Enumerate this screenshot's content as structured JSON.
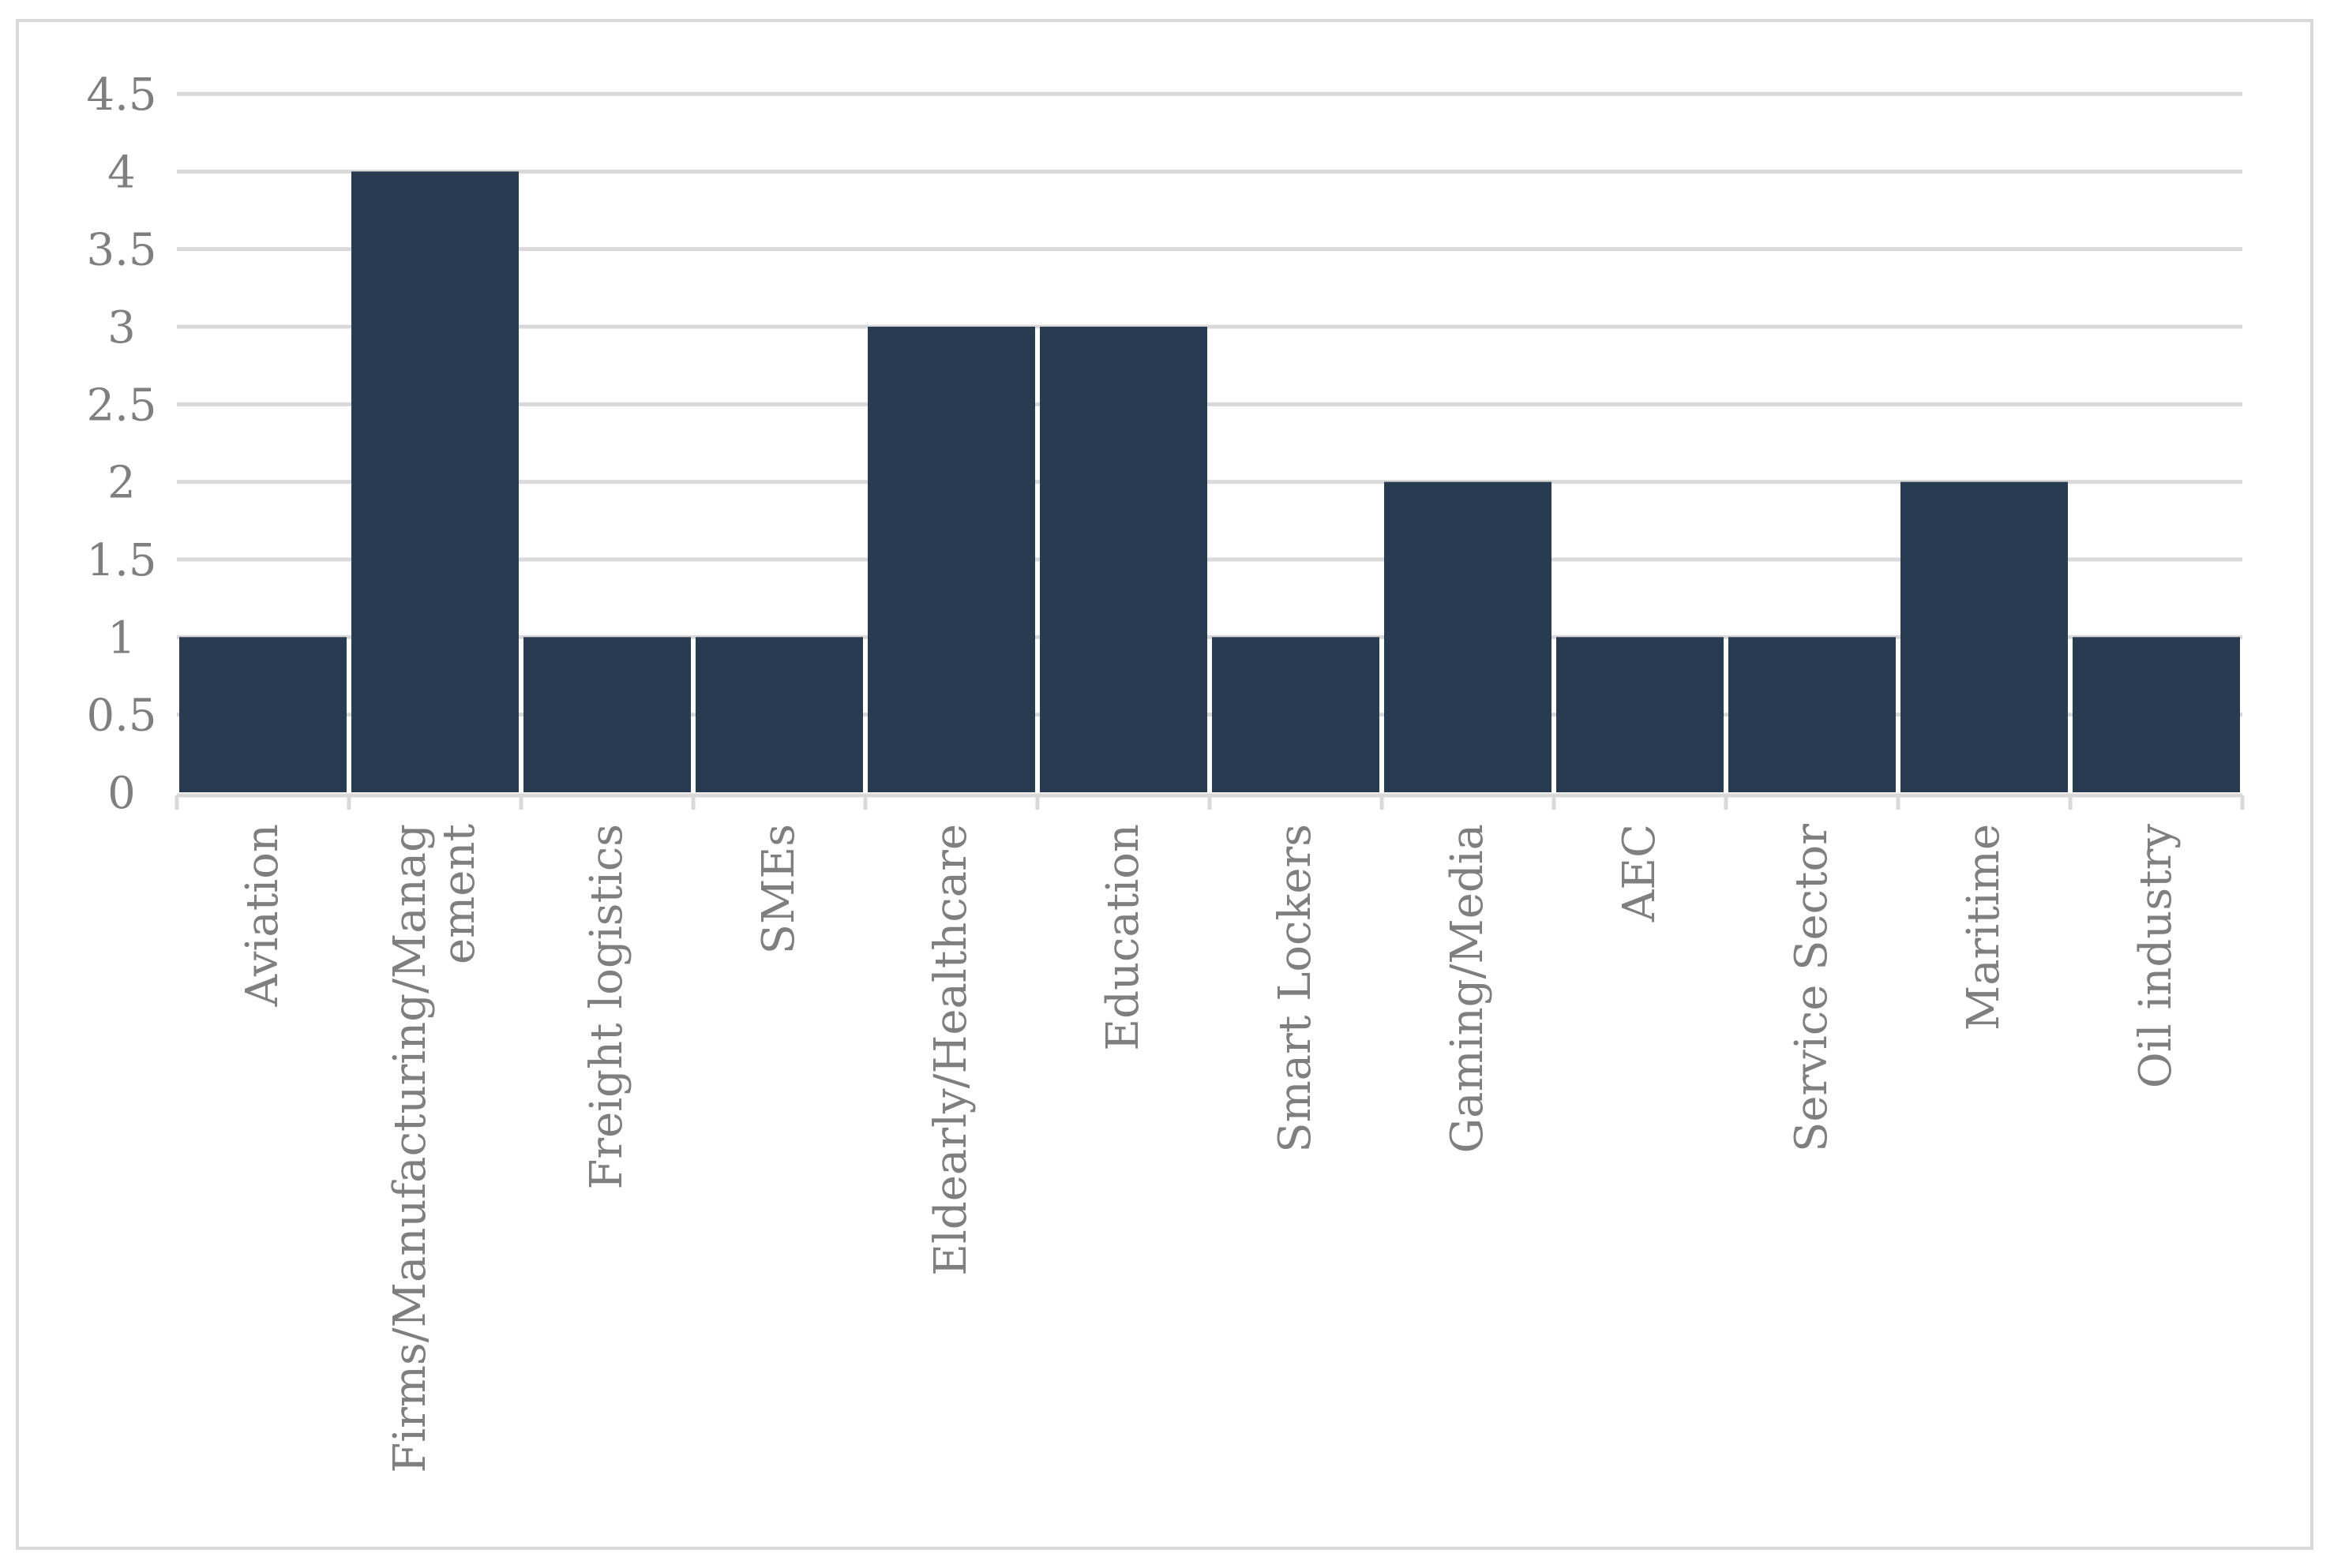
{
  "chart_data": {
    "type": "bar",
    "title": "",
    "xlabel": "",
    "ylabel": "",
    "categories": [
      "Aviation",
      "Firms/Manufacturing/Management",
      "Freight logistics",
      "SMEs",
      "Eldearly/Healthcare",
      "Education",
      "Smart Lockers",
      "Gaming/Media",
      "AEC",
      "Service Sector",
      "Maritime",
      "Oil industry"
    ],
    "category_label_lines": [
      [
        "Aviation"
      ],
      [
        "Firms/Manufacturing/Manag",
        "ement"
      ],
      [
        "Freight logistics"
      ],
      [
        "SMEs"
      ],
      [
        "Eldearly/Healthcare"
      ],
      [
        "Education"
      ],
      [
        "Smart Lockers"
      ],
      [
        "Gaming/Media"
      ],
      [
        "AEC"
      ],
      [
        "Service Sector"
      ],
      [
        "Maritime"
      ],
      [
        "Oil industry"
      ]
    ],
    "values": [
      1,
      4,
      1,
      1,
      3,
      3,
      1,
      2,
      1,
      1,
      2,
      1
    ],
    "ylim": [
      0,
      4.5
    ],
    "yticks": [
      "0",
      "0.5",
      "1",
      "1.5",
      "2",
      "2.5",
      "3",
      "3.5",
      "4",
      "4.5"
    ],
    "grid": true,
    "legend": "none",
    "bar_color": "#293b50",
    "grid_color": "#d9d9d9",
    "label_color": "#7f7f7f"
  }
}
